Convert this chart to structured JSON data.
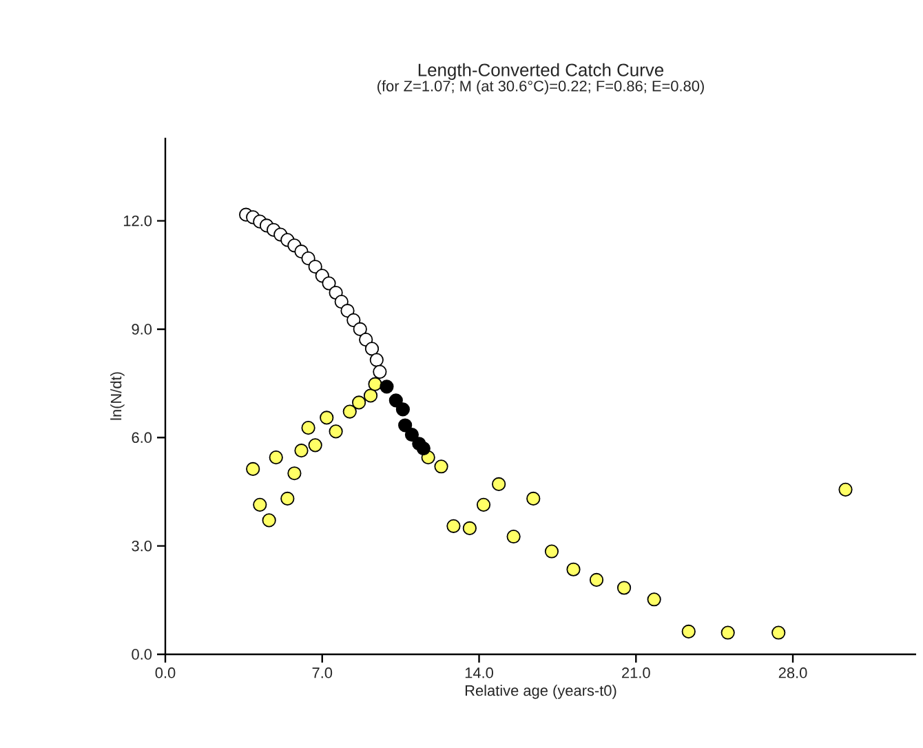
{
  "chart_data": {
    "type": "scatter",
    "title": "Length-Converted Catch Curve",
    "subtitle": "(for Z=1.07; M (at 30.6°C)=0.22; F=0.86; E=0.80)",
    "xlabel": "Relative age (years-t0)",
    "ylabel": "ln(N/dt)",
    "xlim": [
      0,
      33.5
    ],
    "ylim": [
      0,
      14.3
    ],
    "xticks": [
      {
        "value": 0,
        "label": "0.0"
      },
      {
        "value": 7,
        "label": "7.0"
      },
      {
        "value": 14,
        "label": "14.0"
      },
      {
        "value": 21,
        "label": "21.0"
      },
      {
        "value": 28,
        "label": "28.0"
      }
    ],
    "yticks": [
      {
        "value": 0,
        "label": "0.0"
      },
      {
        "value": 3,
        "label": "3.0"
      },
      {
        "value": 6,
        "label": "6.0"
      },
      {
        "value": 9,
        "label": "9.0"
      },
      {
        "value": 12,
        "label": "12.0"
      }
    ],
    "grid": false,
    "marker": "circle",
    "series": [
      {
        "color": "#ffffff",
        "x": [
          3.6,
          3.91,
          4.22,
          4.52,
          4.83,
          5.14,
          5.45,
          5.76,
          6.07,
          6.38,
          6.69,
          7.0,
          7.3,
          7.61,
          7.86,
          8.13,
          8.4,
          8.69,
          8.95,
          9.22,
          9.43,
          9.57
        ],
        "values": [
          12.17,
          12.1,
          11.98,
          11.87,
          11.75,
          11.62,
          11.47,
          11.32,
          11.15,
          10.96,
          10.73,
          10.48,
          10.27,
          10.01,
          9.76,
          9.51,
          9.25,
          9.0,
          8.71,
          8.46,
          8.15,
          7.82
        ]
      },
      {
        "color": "#ffff66",
        "x": [
          3.91,
          4.94,
          5.76,
          4.22,
          5.45,
          4.63,
          6.07,
          6.69,
          6.38,
          7.2,
          7.61,
          8.23,
          8.64,
          9.16,
          9.36,
          11.73,
          12.31,
          12.86,
          13.58,
          14.2,
          14.88,
          16.42,
          15.54,
          17.24,
          18.21,
          19.24,
          20.47,
          21.81,
          23.35,
          25.1,
          27.36,
          30.35
        ],
        "values": [
          5.13,
          5.45,
          5.01,
          4.14,
          4.31,
          3.71,
          5.64,
          5.79,
          6.27,
          6.55,
          6.17,
          6.72,
          6.97,
          7.16,
          7.48,
          5.45,
          5.2,
          3.55,
          3.49,
          4.14,
          4.71,
          4.31,
          3.26,
          2.85,
          2.35,
          2.06,
          1.84,
          1.52,
          0.63,
          0.6,
          0.6,
          4.56
        ]
      },
      {
        "color": "#000000",
        "x": [
          9.88,
          10.29,
          10.6,
          10.7,
          11.0,
          11.32,
          11.52
        ],
        "values": [
          7.41,
          7.03,
          6.78,
          6.34,
          6.08,
          5.83,
          5.7
        ]
      }
    ]
  }
}
